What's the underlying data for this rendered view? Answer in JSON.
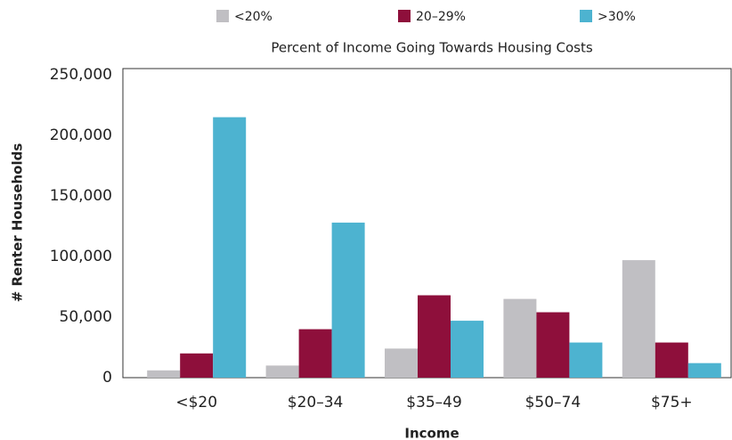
{
  "chart_data": {
    "type": "bar",
    "title": "Percent of Income Going Towards Housing Costs",
    "x_label": "Income",
    "y_label": "# Renter Households",
    "categories": [
      "<$20",
      "$20–34",
      "$35–49",
      "$50–74",
      "$75+"
    ],
    "series": [
      {
        "name": "<20%",
        "color": "#c0bfc3",
        "values": [
          6000,
          10000,
          24000,
          65000,
          97000
        ]
      },
      {
        "name": "20–29%",
        "color": "#8e0f3b",
        "values": [
          20000,
          40000,
          68000,
          54000,
          29000
        ]
      },
      {
        "name": ">30%",
        "color": "#4db3d0",
        "values": [
          215000,
          128000,
          47000,
          29000,
          12000
        ]
      }
    ],
    "ylim": [
      0,
      250000
    ],
    "yticks": [
      0,
      {
        "value": 50000,
        "label": "50,000"
      },
      {
        "value": 100000,
        "label": "100,000"
      },
      {
        "value": 150000,
        "label": "150,000"
      },
      {
        "value": 200000,
        "label": "200,000"
      },
      {
        "value": 250000,
        "label": "250,000"
      }
    ],
    "legend": "top"
  }
}
